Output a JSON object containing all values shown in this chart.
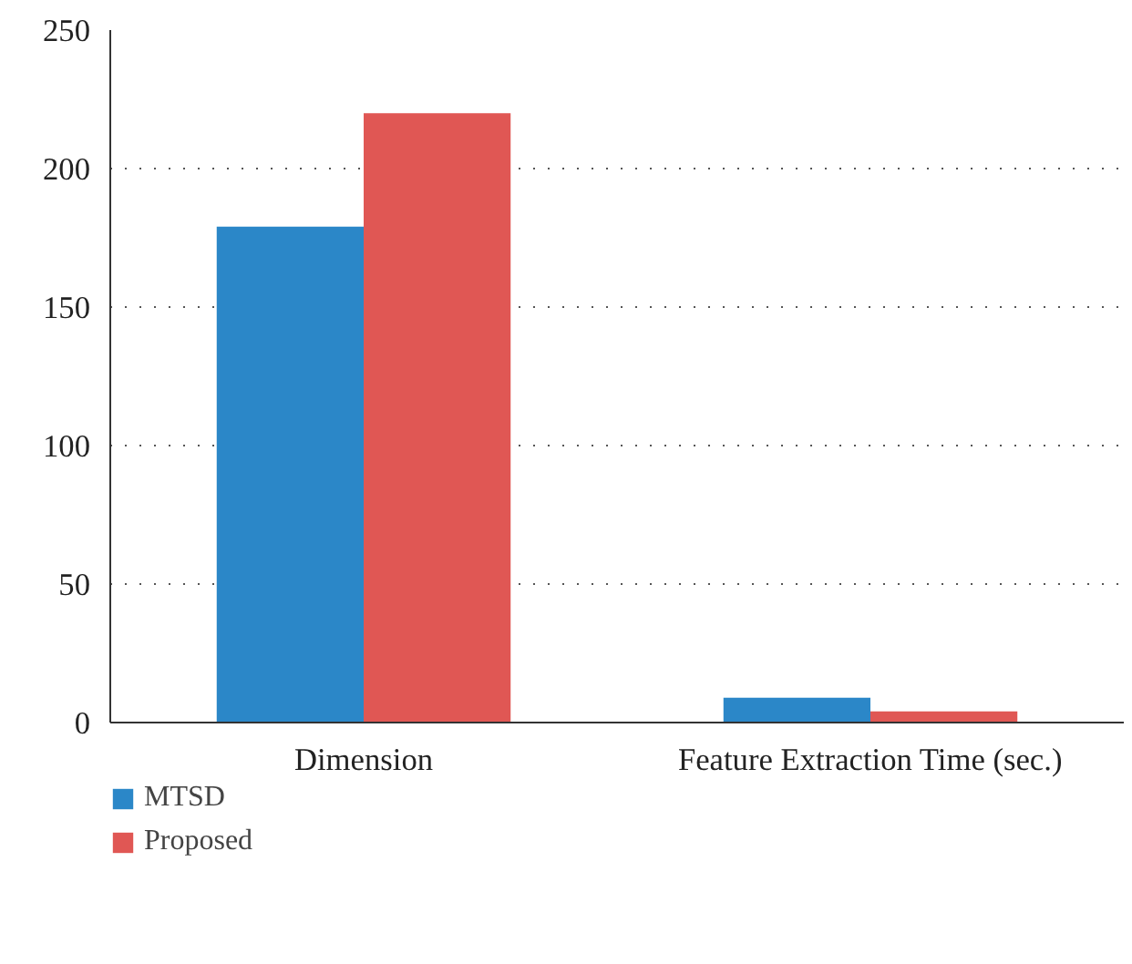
{
  "chart_data": {
    "type": "bar",
    "categories": [
      "Dimension",
      "Feature Extraction Time (sec.)"
    ],
    "series": [
      {
        "name": "MTSD",
        "color": "#2b87c8",
        "values": [
          179,
          9
        ]
      },
      {
        "name": "Proposed",
        "color": "#e05754",
        "values": [
          220,
          4
        ]
      }
    ],
    "ylim": [
      0,
      250
    ],
    "yticks": [
      0,
      50,
      100,
      150,
      200,
      250
    ],
    "grid": "y",
    "legend": "bottom left"
  }
}
